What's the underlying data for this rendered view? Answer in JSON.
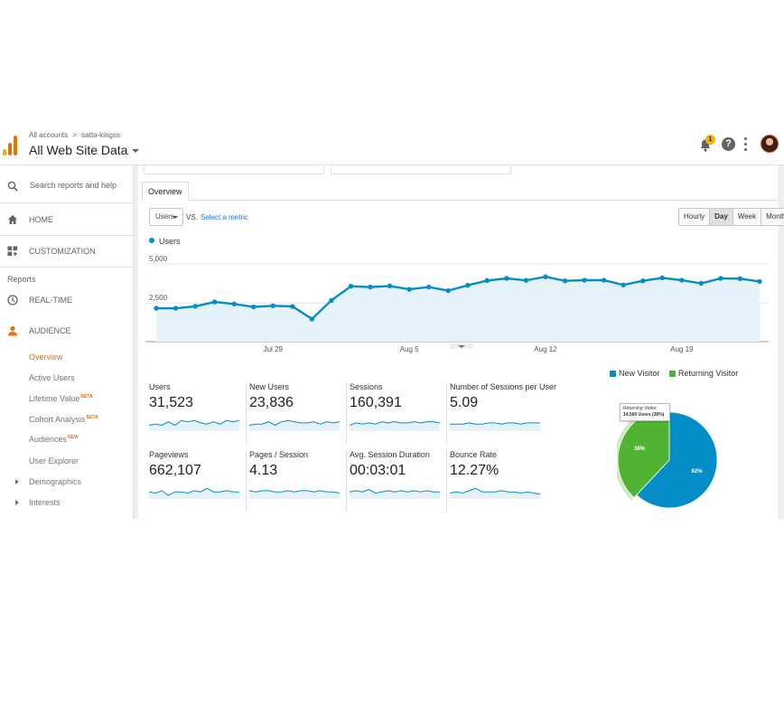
{
  "header": {
    "breadcrumb": [
      "All accounts",
      "satta-kingss"
    ],
    "breadcrumb_sep": ">",
    "property": "All Web Site Data",
    "notification_count": "1",
    "help_glyph": "?",
    "icons": [
      "analytics-logo-icon",
      "bell-icon",
      "help-icon",
      "more-vert-icon",
      "avatar"
    ]
  },
  "sidebar": {
    "search_placeholder": "Search reports and help",
    "home": "HOME",
    "customization": "CUSTOMIZATION",
    "reports_label": "Reports",
    "realtime": "REAL-TIME",
    "audience": "AUDIENCE",
    "audience_items": [
      {
        "label": "Overview",
        "badge": ""
      },
      {
        "label": "Active Users",
        "badge": ""
      },
      {
        "label": "Lifetime Value",
        "badge": "BETA"
      },
      {
        "label": "Cohort Analysis",
        "badge": "BETA"
      },
      {
        "label": "Audiences",
        "badge": "NEW"
      },
      {
        "label": "User Explorer",
        "badge": ""
      },
      {
        "label": "Demographics",
        "badge": ""
      },
      {
        "label": "Interests",
        "badge": ""
      }
    ]
  },
  "main": {
    "tab": "Overview",
    "metric_select": "Users",
    "vs": "VS.",
    "select_metric": "Select a metric",
    "granularity": [
      {
        "label": "Hourly",
        "active": false
      },
      {
        "label": "Day",
        "active": true
      },
      {
        "label": "Week",
        "active": false
      },
      {
        "label": "Month",
        "active": false
      }
    ]
  },
  "metrics": [
    {
      "label": "Users",
      "value": "31,523"
    },
    {
      "label": "New Users",
      "value": "23,836"
    },
    {
      "label": "Sessions",
      "value": "160,391"
    },
    {
      "label": "Number of Sessions per User",
      "value": "5.09"
    },
    {
      "label": "Pageviews",
      "value": "662,107"
    },
    {
      "label": "Pages / Session",
      "value": "4.13"
    },
    {
      "label": "Avg. Session Duration",
      "value": "00:03:01"
    },
    {
      "label": "Bounce Rate",
      "value": "12.27%"
    }
  ],
  "colors": {
    "line": "#058dc7",
    "area": "#e6f2f9",
    "new_visitor": "#058dc7",
    "returning_visitor": "#50b432",
    "accent": "#e8710a"
  },
  "chart_data": [
    {
      "type": "area",
      "legend": [
        "Users"
      ],
      "x_tick_labels": [
        "Jul 29",
        "Aug 5",
        "Aug 12",
        "Aug 19"
      ],
      "y_tick_labels": [
        "5,000",
        "2,500"
      ],
      "ylim": [
        0,
        6000
      ],
      "series": [
        {
          "name": "Users",
          "values": [
            2150,
            2150,
            2280,
            2560,
            2430,
            2240,
            2310,
            2270,
            1460,
            2660,
            3570,
            3520,
            3590,
            3370,
            3520,
            3290,
            3630,
            3940,
            4080,
            3950,
            4180,
            3920,
            3960,
            3960,
            3650,
            3920,
            4110,
            3960,
            3760,
            4080,
            4060,
            3880
          ]
        }
      ]
    },
    {
      "type": "pie",
      "legend": [
        "New Visitor",
        "Returning Visitor"
      ],
      "slices": [
        {
          "name": "New Visitor",
          "value": 62,
          "label": "62%"
        },
        {
          "name": "Returning Visitor",
          "value": 38,
          "label": "38%"
        }
      ],
      "tooltip": {
        "title": "Returning Visitor",
        "text": "14,560 Users (38%)"
      }
    }
  ]
}
